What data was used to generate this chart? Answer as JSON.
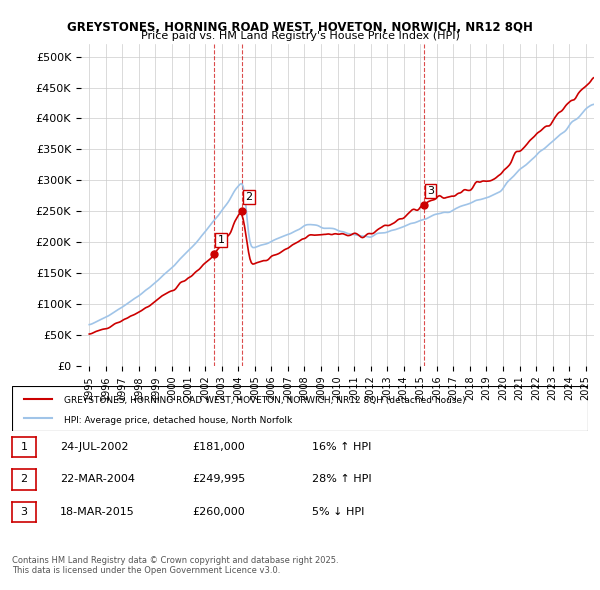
{
  "title1": "GREYSTONES, HORNING ROAD WEST, HOVETON, NORWICH, NR12 8QH",
  "title2": "Price paid vs. HM Land Registry's House Price Index (HPI)",
  "legend_line1": "GREYSTONES, HORNING ROAD WEST, HOVETON, NORWICH, NR12 8QH (detached house)",
  "legend_line2": "HPI: Average price, detached house, North Norfolk",
  "footer": "Contains HM Land Registry data © Crown copyright and database right 2025.\nThis data is licensed under the Open Government Licence v3.0.",
  "transactions": [
    {
      "num": 1,
      "date": "24-JUL-2002",
      "price": "£181,000",
      "change": "16% ↑ HPI"
    },
    {
      "num": 2,
      "date": "22-MAR-2004",
      "price": "£249,995",
      "change": "28% ↑ HPI"
    },
    {
      "num": 3,
      "date": "18-MAR-2015",
      "price": "£260,000",
      "change": "5% ↓ HPI"
    }
  ],
  "sale_dates": [
    2002.56,
    2004.22,
    2015.22
  ],
  "sale_prices": [
    181000,
    249995,
    260000
  ],
  "hpi_color": "#a0c4e8",
  "price_color": "#cc0000",
  "marker_color": "#cc0000",
  "vline_color": "#cc0000",
  "grid_color": "#cccccc",
  "background_color": "#ffffff",
  "ylim": [
    0,
    520000
  ],
  "yticks": [
    0,
    50000,
    100000,
    150000,
    200000,
    250000,
    300000,
    350000,
    400000,
    450000,
    500000
  ],
  "xlim_start": 1994.5,
  "xlim_end": 2025.5
}
